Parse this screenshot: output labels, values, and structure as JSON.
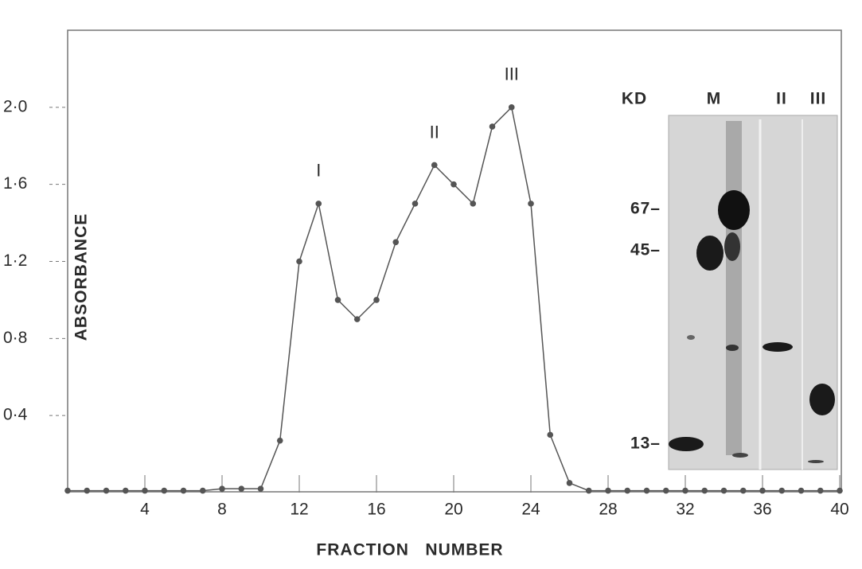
{
  "chart_data": {
    "type": "line",
    "x": [
      0,
      1,
      2,
      3,
      4,
      5,
      6,
      7,
      8,
      9,
      10,
      11,
      12,
      13,
      14,
      15,
      16,
      17,
      18,
      19,
      20,
      21,
      22,
      23,
      24,
      25,
      26,
      27,
      28,
      29,
      30,
      31,
      32,
      33,
      34,
      35,
      36,
      37,
      38,
      39,
      40
    ],
    "values": [
      0.01,
      0.01,
      0.01,
      0.01,
      0.01,
      0.01,
      0.01,
      0.01,
      0.02,
      0.02,
      0.02,
      0.27,
      1.2,
      1.5,
      1.0,
      0.9,
      1.0,
      1.3,
      1.5,
      1.7,
      1.6,
      1.5,
      1.9,
      2.0,
      1.5,
      0.3,
      0.05,
      0.01,
      0.01,
      0.01,
      0.01,
      0.01,
      0.01,
      0.01,
      0.01,
      0.01,
      0.01,
      0.01,
      0.01,
      0.01,
      0.01
    ],
    "color": "#555555",
    "xlim": [
      0,
      40
    ],
    "xticks": [
      4,
      8,
      12,
      16,
      20,
      24,
      28,
      32,
      36,
      40
    ],
    "ylim": [
      0,
      2.4
    ],
    "yticks": [
      {
        "value": 0.4,
        "label": "0·4"
      },
      {
        "value": 0.8,
        "label": "0·8"
      },
      {
        "value": 1.2,
        "label": "1·2"
      },
      {
        "value": 1.6,
        "label": "1·6"
      },
      {
        "value": 2.0,
        "label": "2·0"
      }
    ],
    "xlabel": "FRACTION   NUMBER",
    "ylabel": "ABSORBANCE",
    "grid": false,
    "annotations": [
      {
        "text": "I",
        "x": 13,
        "y": 1.5
      },
      {
        "text": "II",
        "x": 19,
        "y": 1.7
      },
      {
        "text": "III",
        "x": 23,
        "y": 2.0
      }
    ],
    "inset": {
      "header": [
        "KD",
        "M",
        "II",
        "III"
      ],
      "markers": [
        "67–",
        "45–",
        "13–"
      ]
    }
  }
}
